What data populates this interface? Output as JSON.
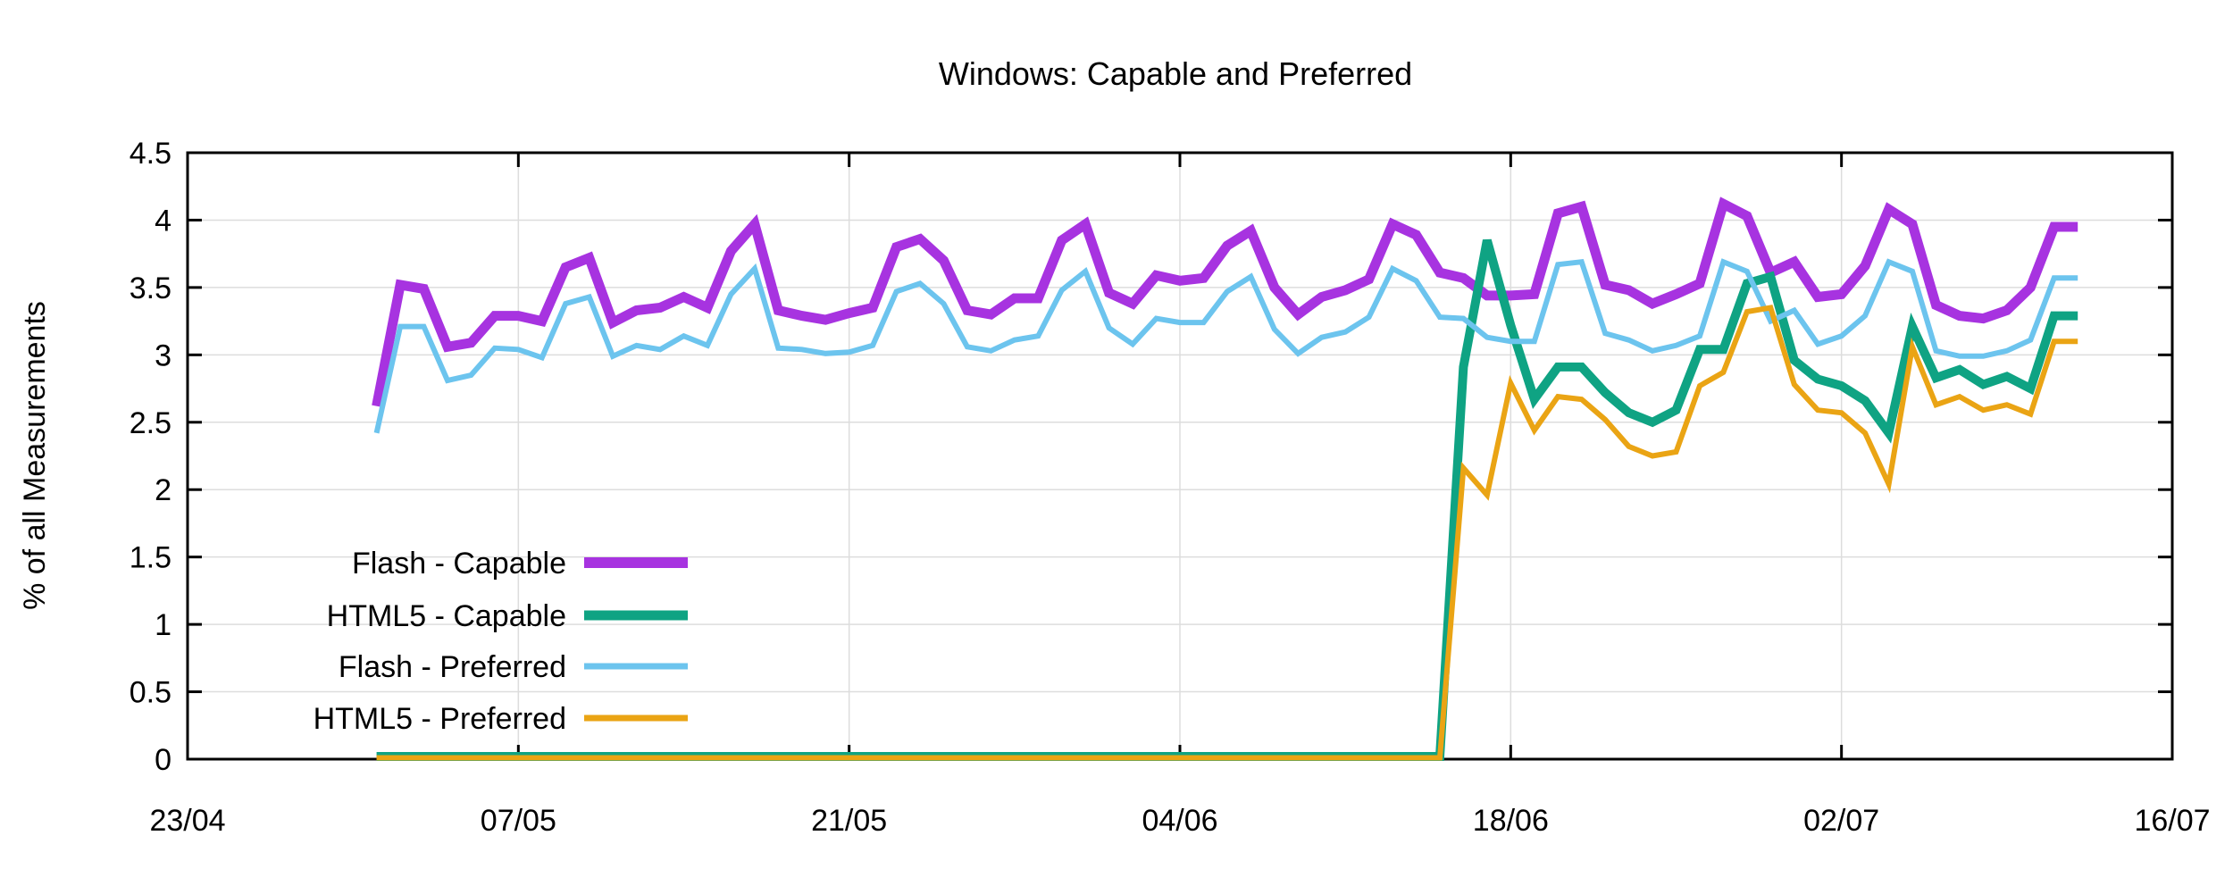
{
  "chart_data": {
    "type": "line",
    "title": "Windows: Capable and Preferred",
    "xlabel": "",
    "ylabel": "% of all Measurements",
    "xlim": [
      "23/04",
      "16/07"
    ],
    "ylim": [
      0,
      4.5
    ],
    "x_ticks": [
      "23/04",
      "07/05",
      "21/05",
      "04/06",
      "18/06",
      "02/07",
      "16/07"
    ],
    "y_ticks": [
      "0",
      "0.5",
      "1",
      "1.5",
      "2",
      "2.5",
      "3",
      "3.5",
      "4",
      "4.5"
    ],
    "grid": true,
    "legend_position": "bottom-left",
    "colors": {
      "flash_capable": "#a733e0",
      "html5_capable": "#0fa383",
      "flash_preferred": "#6cc4ee",
      "html5_preferred": "#eaa414"
    },
    "dates": [
      "01/05",
      "02/05",
      "03/05",
      "04/05",
      "05/05",
      "06/05",
      "07/05",
      "08/05",
      "09/05",
      "10/05",
      "11/05",
      "12/05",
      "13/05",
      "14/05",
      "15/05",
      "16/05",
      "17/05",
      "18/05",
      "19/05",
      "20/05",
      "21/05",
      "22/05",
      "23/05",
      "24/05",
      "25/05",
      "26/05",
      "27/05",
      "28/05",
      "29/05",
      "30/05",
      "31/05",
      "01/06",
      "02/06",
      "03/06",
      "04/06",
      "05/06",
      "06/06",
      "07/06",
      "08/06",
      "09/06",
      "10/06",
      "11/06",
      "12/06",
      "13/06",
      "14/06",
      "15/06",
      "16/06",
      "17/06",
      "18/06",
      "19/06",
      "20/06",
      "21/06",
      "22/06",
      "23/06",
      "24/06",
      "25/06",
      "26/06",
      "27/06",
      "28/06",
      "29/06",
      "30/06",
      "01/07",
      "02/07",
      "03/07",
      "04/07",
      "05/07",
      "06/07",
      "07/07",
      "08/07",
      "09/07",
      "10/07",
      "11/07",
      "12/07"
    ],
    "series": [
      {
        "key": "flash_capable",
        "name": "Flash - Capable",
        "values": [
          2.62,
          3.52,
          3.49,
          3.06,
          3.09,
          3.29,
          3.29,
          3.25,
          3.65,
          3.72,
          3.24,
          3.33,
          3.35,
          3.43,
          3.35,
          3.77,
          3.97,
          3.33,
          3.29,
          3.26,
          3.31,
          3.35,
          3.8,
          3.86,
          3.7,
          3.33,
          3.3,
          3.42,
          3.42,
          3.85,
          3.97,
          3.46,
          3.38,
          3.59,
          3.55,
          3.57,
          3.81,
          3.92,
          3.5,
          3.3,
          3.43,
          3.48,
          3.56,
          3.97,
          3.89,
          3.61,
          3.57,
          3.44,
          3.44,
          3.45,
          4.05,
          4.1,
          3.52,
          3.48,
          3.38,
          3.45,
          3.53,
          4.12,
          4.03,
          3.61,
          3.69,
          3.43,
          3.45,
          3.66,
          4.08,
          3.97,
          3.37,
          3.29,
          3.27,
          3.33,
          3.5,
          3.95,
          3.95
        ]
      },
      {
        "key": "html5_capable",
        "name": "HTML5 - Capable",
        "values": [
          0.02,
          0.02,
          0.02,
          0.02,
          0.02,
          0.02,
          0.02,
          0.02,
          0.02,
          0.02,
          0.02,
          0.02,
          0.02,
          0.02,
          0.02,
          0.02,
          0.02,
          0.02,
          0.02,
          0.02,
          0.02,
          0.02,
          0.02,
          0.02,
          0.02,
          0.02,
          0.02,
          0.02,
          0.02,
          0.02,
          0.02,
          0.02,
          0.02,
          0.02,
          0.02,
          0.02,
          0.02,
          0.02,
          0.02,
          0.02,
          0.02,
          0.02,
          0.02,
          0.02,
          0.02,
          0.02,
          2.91,
          3.85,
          3.22,
          2.67,
          2.91,
          2.91,
          2.72,
          2.57,
          2.5,
          2.59,
          3.04,
          3.04,
          3.53,
          3.58,
          2.96,
          2.82,
          2.77,
          2.66,
          2.42,
          3.21,
          2.83,
          2.89,
          2.78,
          2.84,
          2.75,
          3.29,
          3.29
        ]
      },
      {
        "key": "flash_preferred",
        "name": "Flash - Preferred",
        "values": [
          2.42,
          3.21,
          3.21,
          2.81,
          2.85,
          3.05,
          3.04,
          2.98,
          3.38,
          3.43,
          2.99,
          3.07,
          3.04,
          3.14,
          3.07,
          3.45,
          3.64,
          3.05,
          3.04,
          3.01,
          3.02,
          3.07,
          3.47,
          3.53,
          3.38,
          3.06,
          3.03,
          3.11,
          3.14,
          3.48,
          3.62,
          3.2,
          3.08,
          3.27,
          3.24,
          3.24,
          3.47,
          3.58,
          3.19,
          3.01,
          3.13,
          3.17,
          3.28,
          3.64,
          3.55,
          3.28,
          3.27,
          3.13,
          3.1,
          3.1,
          3.67,
          3.69,
          3.16,
          3.11,
          3.03,
          3.07,
          3.14,
          3.69,
          3.62,
          3.25,
          3.33,
          3.08,
          3.14,
          3.29,
          3.69,
          3.62,
          3.03,
          2.99,
          2.99,
          3.03,
          3.11,
          3.57,
          3.57
        ]
      },
      {
        "key": "html5_preferred",
        "name": "HTML5 - Preferred",
        "values": [
          0.01,
          0.01,
          0.01,
          0.01,
          0.01,
          0.01,
          0.01,
          0.01,
          0.01,
          0.01,
          0.01,
          0.01,
          0.01,
          0.01,
          0.01,
          0.01,
          0.01,
          0.01,
          0.01,
          0.01,
          0.01,
          0.01,
          0.01,
          0.01,
          0.01,
          0.01,
          0.01,
          0.01,
          0.01,
          0.01,
          0.01,
          0.01,
          0.01,
          0.01,
          0.01,
          0.01,
          0.01,
          0.01,
          0.01,
          0.01,
          0.01,
          0.01,
          0.01,
          0.01,
          0.01,
          0.01,
          2.16,
          1.96,
          2.79,
          2.44,
          2.69,
          2.67,
          2.52,
          2.32,
          2.25,
          2.28,
          2.77,
          2.87,
          3.32,
          3.35,
          2.78,
          2.59,
          2.57,
          2.42,
          2.04,
          3.06,
          2.63,
          2.69,
          2.59,
          2.63,
          2.56,
          3.1,
          3.1
        ]
      }
    ]
  }
}
